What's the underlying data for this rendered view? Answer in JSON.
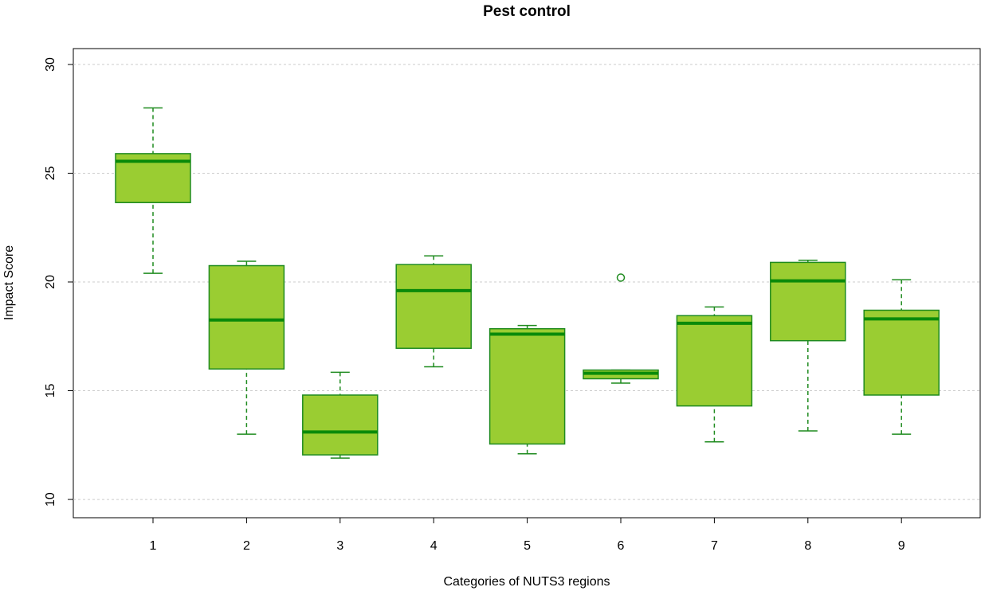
{
  "chart_data": {
    "type": "boxplot",
    "title": "Pest control",
    "x_label": "Categories of NUTS3 regions",
    "y_label": "Impact Score",
    "categories": [
      "1",
      "2",
      "3",
      "4",
      "5",
      "6",
      "7",
      "8",
      "9"
    ],
    "boxes": [
      {
        "whislo": 20.4,
        "q1": 23.65,
        "med": 25.55,
        "q3": 25.9,
        "whishi": 28.0
      },
      {
        "whislo": 13.0,
        "q1": 16.0,
        "med": 18.25,
        "q3": 20.75,
        "whishi": 20.95
      },
      {
        "whislo": 11.9,
        "q1": 12.05,
        "med": 13.1,
        "q3": 14.8,
        "whishi": 15.85
      },
      {
        "whislo": 16.1,
        "q1": 16.95,
        "med": 19.6,
        "q3": 20.8,
        "whishi": 21.2
      },
      {
        "whislo": 12.1,
        "q1": 12.55,
        "med": 17.6,
        "q3": 17.85,
        "whishi": 18.0
      },
      {
        "whislo": 15.35,
        "q1": 15.55,
        "med": 15.8,
        "q3": 15.95,
        "whishi": 15.95,
        "outliers": [
          20.2
        ]
      },
      {
        "whislo": 12.65,
        "q1": 14.3,
        "med": 18.1,
        "q3": 18.45,
        "whishi": 18.85
      },
      {
        "whislo": 13.15,
        "q1": 17.3,
        "med": 20.05,
        "q3": 20.9,
        "whishi": 21.0
      },
      {
        "whislo": 13.0,
        "q1": 14.8,
        "med": 18.3,
        "q3": 18.7,
        "whishi": 20.1
      }
    ],
    "fill_color": "#9acd32",
    "edge_color": "#1f8b1f",
    "median_color": "#0a8a0a",
    "ylim": [
      9.16,
      30.73
    ],
    "yticks": [
      10,
      15,
      20,
      25,
      30
    ],
    "grid": true
  }
}
